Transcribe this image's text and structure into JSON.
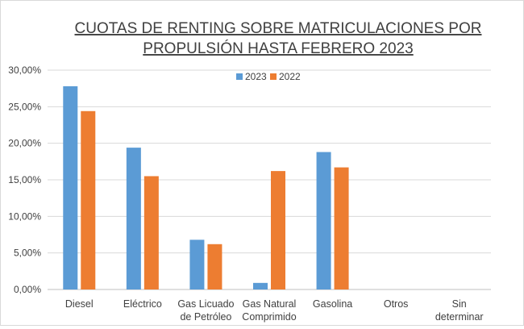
{
  "chart_data": {
    "type": "bar",
    "title_lines": [
      "CUOTAS DE RENTING SOBRE MATRICULACIONES POR",
      "PROPULSIÓN HASTA FEBRERO 2023"
    ],
    "categories": [
      [
        "Diesel"
      ],
      [
        "Eléctrico"
      ],
      [
        "Gas Licuado",
        "de Petróleo"
      ],
      [
        "Gas Natural",
        "Comprimido"
      ],
      [
        "Gasolina"
      ],
      [
        "Otros"
      ],
      [
        "Sin",
        "determinar"
      ]
    ],
    "series": [
      {
        "name": "2023",
        "color": "#5b9bd5",
        "values": [
          27.8,
          19.4,
          6.8,
          0.9,
          18.8,
          0,
          0
        ]
      },
      {
        "name": "2022",
        "color": "#ed7d31",
        "values": [
          24.4,
          15.5,
          6.2,
          16.2,
          16.7,
          0,
          0
        ]
      }
    ],
    "ylim": [
      0,
      30
    ],
    "yticks": [
      "0,00%",
      "5,00%",
      "10,00%",
      "15,00%",
      "20,00%",
      "25,00%",
      "30,00%"
    ],
    "ytick_values": [
      0,
      5,
      10,
      15,
      20,
      25,
      30
    ],
    "grid": true,
    "legend_position": "top-center"
  }
}
